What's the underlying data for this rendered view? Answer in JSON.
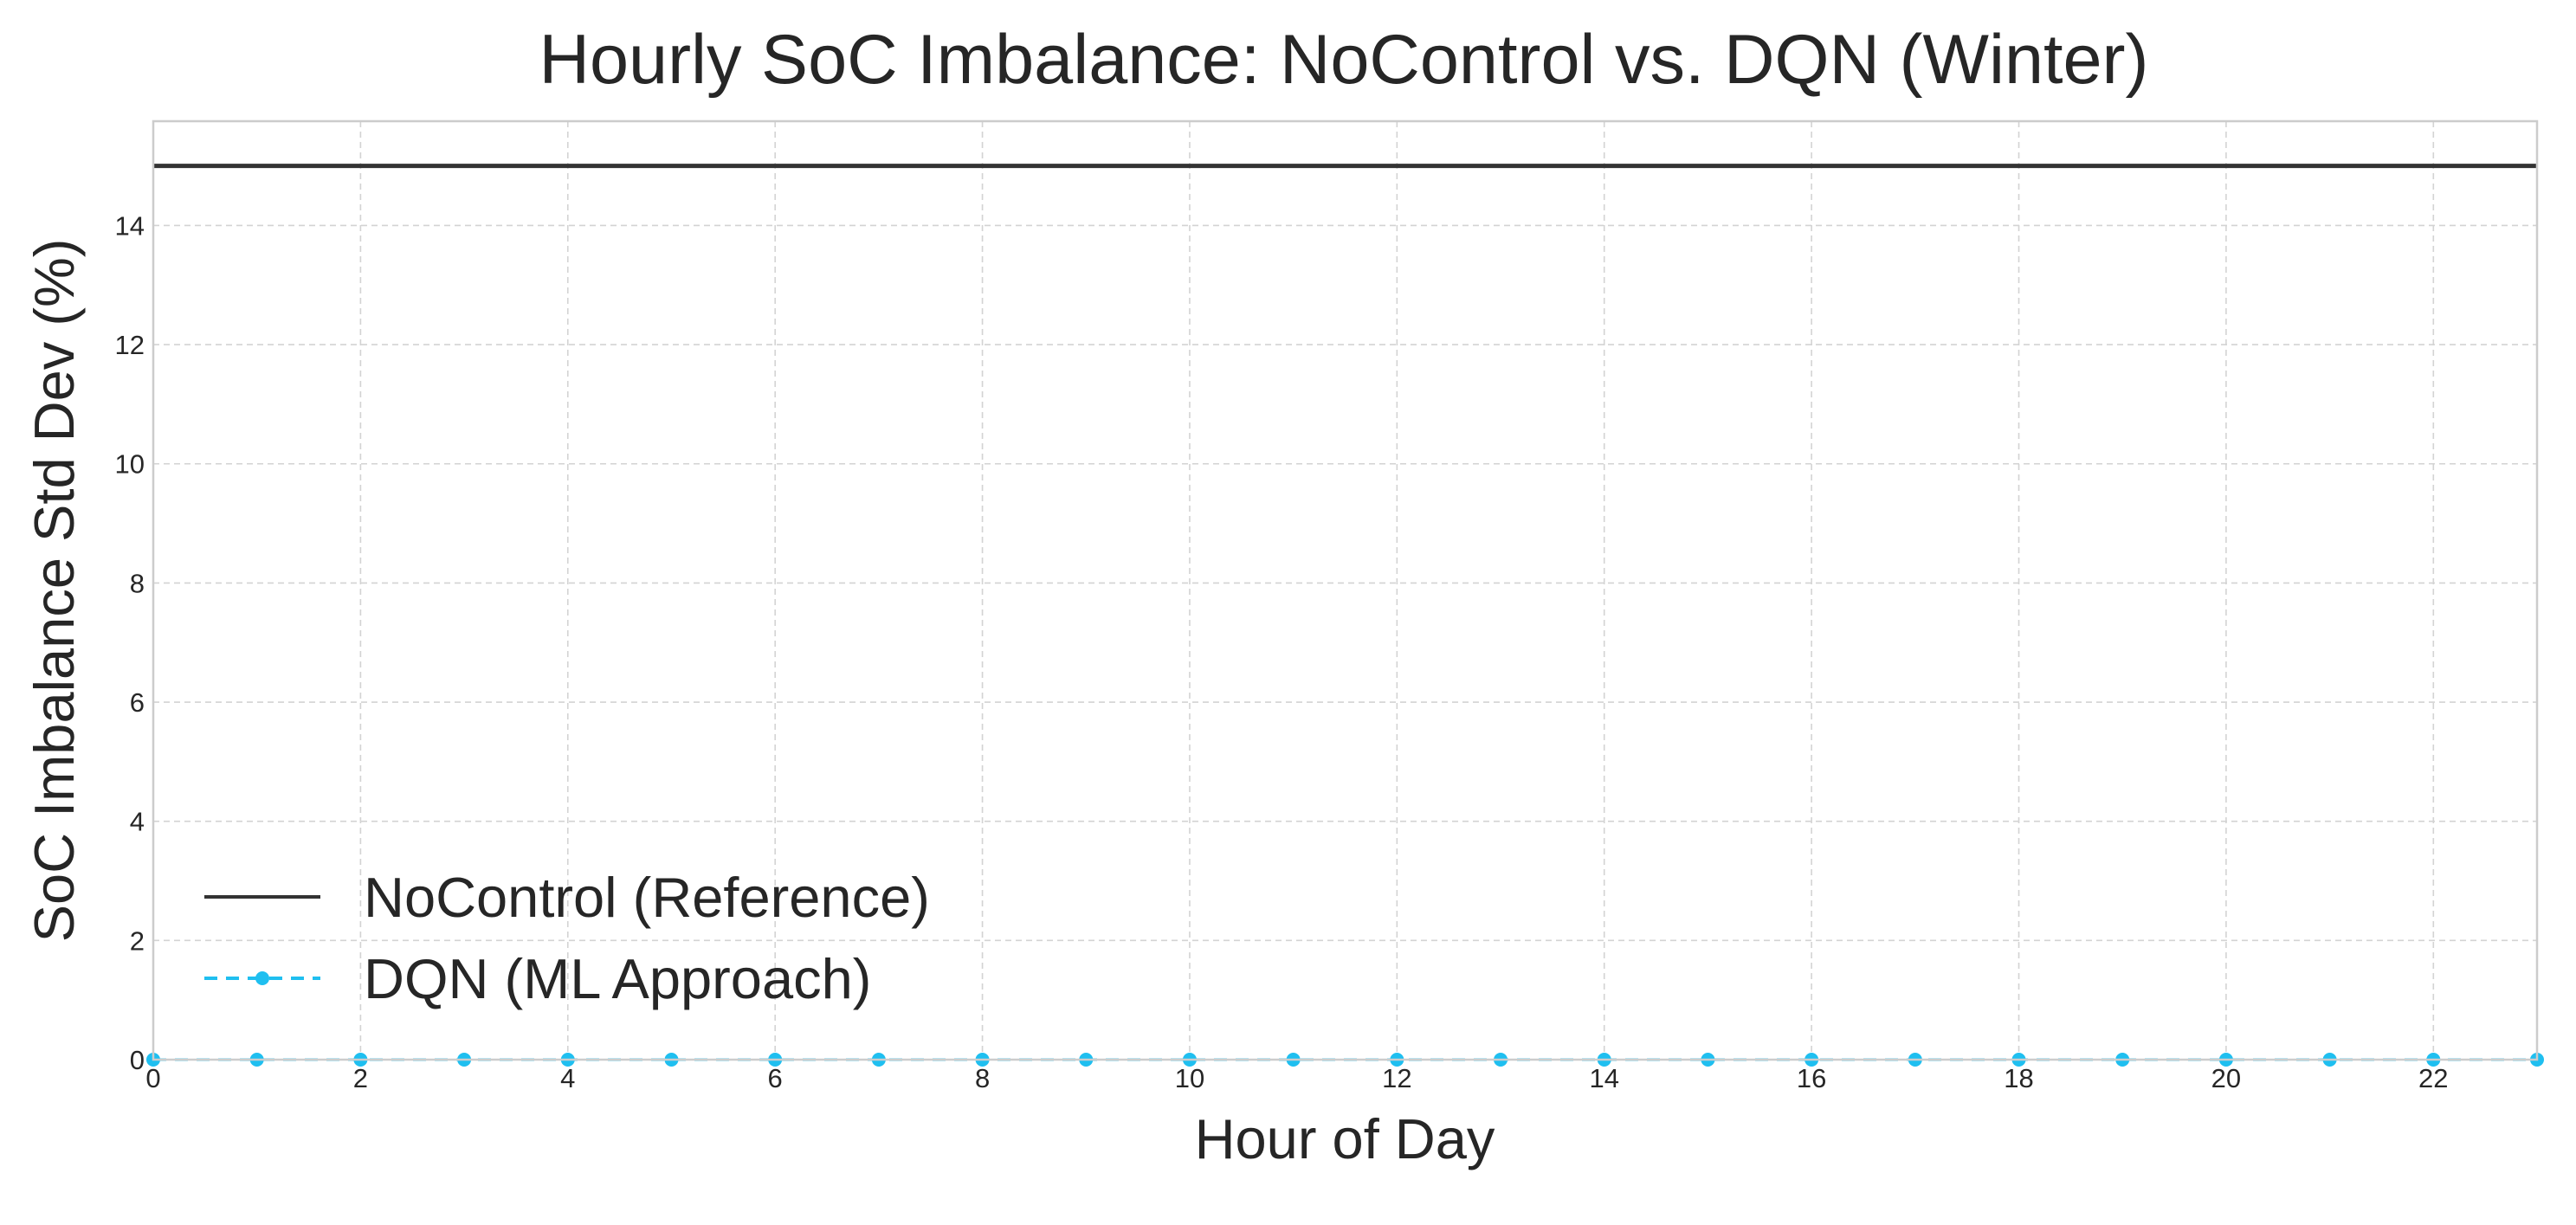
{
  "chart_data": {
    "type": "line",
    "title": "Hourly SoC Imbalance: NoControl vs. DQN (Winter)",
    "xlabel": "Hour of Day",
    "ylabel": "SoC Imbalance Std Dev (%)",
    "xlim": [
      0,
      23
    ],
    "ylim": [
      0,
      15.75
    ],
    "x_ticks": [
      0,
      2,
      4,
      6,
      8,
      10,
      12,
      14,
      16,
      18,
      20,
      22
    ],
    "y_ticks": [
      0,
      2,
      4,
      6,
      8,
      10,
      12,
      14
    ],
    "grid": true,
    "legend_position": "lower-left",
    "x": [
      0,
      1,
      2,
      3,
      4,
      5,
      6,
      7,
      8,
      9,
      10,
      11,
      12,
      13,
      14,
      15,
      16,
      17,
      18,
      19,
      20,
      21,
      22,
      23
    ],
    "series": [
      {
        "name": "NoControl (Reference)",
        "values": [
          15,
          15,
          15,
          15,
          15,
          15,
          15,
          15,
          15,
          15,
          15,
          15,
          15,
          15,
          15,
          15,
          15,
          15,
          15,
          15,
          15,
          15,
          15,
          15
        ],
        "color": "#333333",
        "line_style": "solid",
        "marker": "none"
      },
      {
        "name": "DQN (ML Approach)",
        "values": [
          0,
          0,
          0,
          0,
          0,
          0,
          0,
          0,
          0,
          0,
          0,
          0,
          0,
          0,
          0,
          0,
          0,
          0,
          0,
          0,
          0,
          0,
          0,
          0
        ],
        "color": "#1fbff0",
        "line_style": "dashed",
        "marker": "circle"
      }
    ]
  }
}
